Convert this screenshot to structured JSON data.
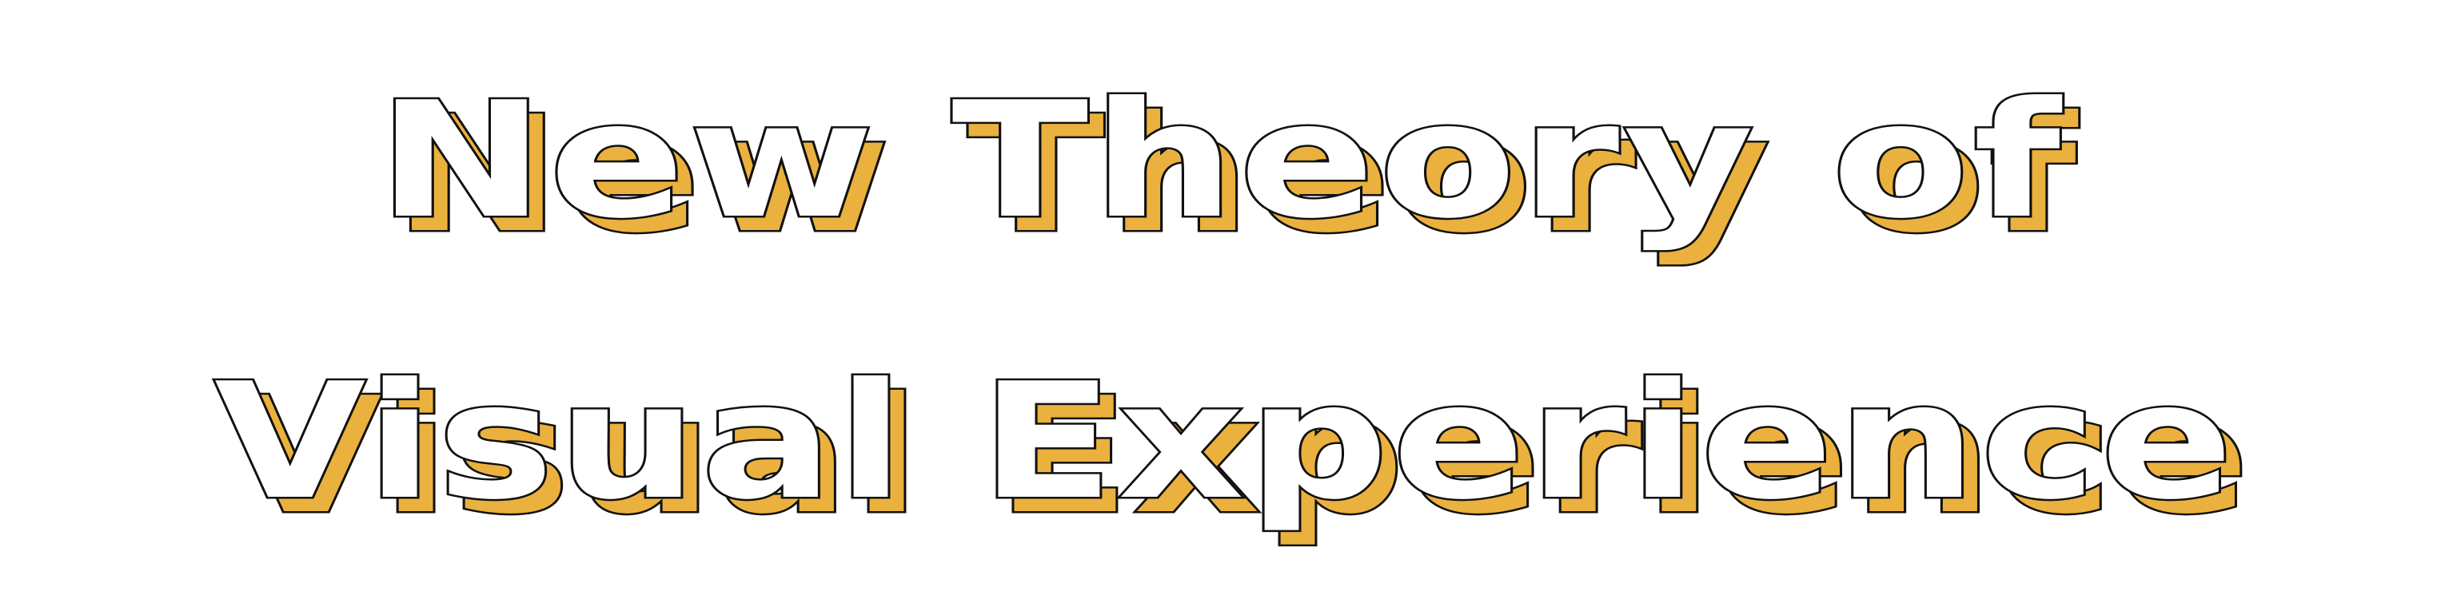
{
  "title": {
    "line1": "New Theory of",
    "line2": "Visual Experience"
  },
  "colors": {
    "background": "#ffffff",
    "fill": "#ffffff",
    "outline": "#111111",
    "shadow": "#ebb13e"
  }
}
